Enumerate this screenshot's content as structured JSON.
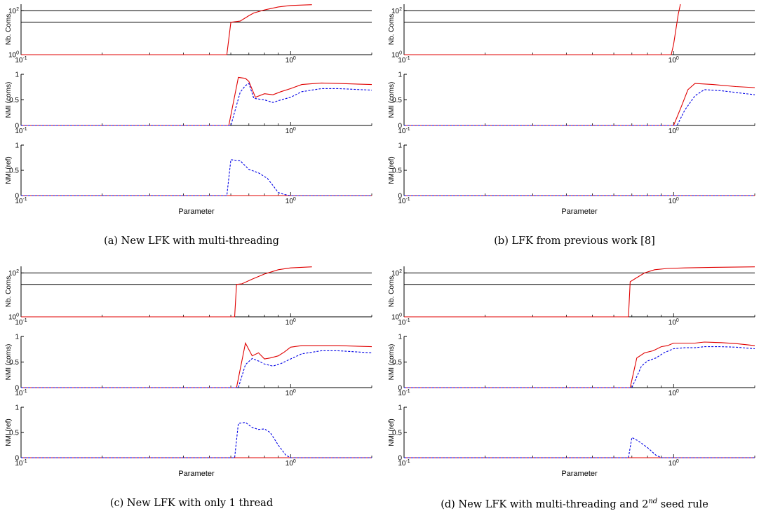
{
  "chart_data": [
    {
      "id": "a",
      "caption": "(a) New LFK with multi-threading",
      "type": "line",
      "xscale": "log",
      "xlim": [
        0.1,
        2
      ],
      "xticks": [
        0.1,
        1
      ],
      "xlabel": "Parameter",
      "subplots": [
        {
          "ylabel": "Nb. Coms",
          "yscale": "log",
          "ylim": [
            1,
            200
          ],
          "yticks": [
            1,
            100
          ],
          "ref_lines": [
            100,
            30
          ],
          "series": [
            {
              "style": "red-solid",
              "x": [
                0.1,
                0.58,
                0.6,
                0.65,
                0.7,
                0.73,
                0.8,
                0.9,
                1.0,
                1.2
              ],
              "y": [
                1,
                1,
                30,
                34,
                60,
                80,
                110,
                150,
                175,
                190
              ]
            }
          ]
        },
        {
          "ylabel": "NMI (coms)",
          "ylim": [
            0,
            1
          ],
          "yticks": [
            0,
            0.5,
            1
          ],
          "series": [
            {
              "style": "red-solid",
              "x": [
                0.1,
                0.59,
                0.64,
                0.68,
                0.7,
                0.74,
                0.8,
                0.86,
                0.92,
                1.0,
                1.1,
                1.3,
                1.5,
                2.0
              ],
              "y": [
                0,
                0,
                0.94,
                0.92,
                0.86,
                0.55,
                0.62,
                0.6,
                0.66,
                0.72,
                0.8,
                0.83,
                0.82,
                0.8
              ]
            },
            {
              "style": "blue-dashed",
              "x": [
                0.1,
                0.6,
                0.65,
                0.68,
                0.7,
                0.73,
                0.8,
                0.86,
                0.92,
                1.0,
                1.1,
                1.3,
                1.5,
                2.0
              ],
              "y": [
                0,
                0,
                0.65,
                0.78,
                0.82,
                0.53,
                0.5,
                0.45,
                0.5,
                0.55,
                0.66,
                0.72,
                0.72,
                0.69
              ]
            }
          ]
        },
        {
          "ylabel": "NMI (ref)",
          "ylim": [
            0,
            1
          ],
          "yticks": [
            0,
            0.5,
            1
          ],
          "series": [
            {
              "style": "red-solid",
              "x": [
                0.1,
                2.0
              ],
              "y": [
                0,
                0
              ]
            },
            {
              "style": "blue-dashed",
              "x": [
                0.1,
                0.58,
                0.6,
                0.65,
                0.7,
                0.76,
                0.82,
                0.86,
                0.9,
                0.95,
                1.0,
                2.0
              ],
              "y": [
                0,
                0,
                0.71,
                0.69,
                0.52,
                0.45,
                0.34,
                0.2,
                0.06,
                0.02,
                0,
                0
              ]
            }
          ]
        }
      ]
    },
    {
      "id": "b",
      "caption": "(b) LFK from previous work [8]",
      "type": "line",
      "xscale": "log",
      "xlim": [
        0.1,
        2
      ],
      "xticks": [
        0.1,
        1
      ],
      "xlabel": "Parameter",
      "subplots": [
        {
          "ylabel": "Nb. Coms",
          "yscale": "log",
          "ylim": [
            1,
            200
          ],
          "yticks": [
            1,
            100
          ],
          "ref_lines": [
            100,
            30
          ],
          "series": [
            {
              "style": "red-solid",
              "x": [
                0.1,
                0.98,
                1.0,
                1.04,
                1.06
              ],
              "y": [
                1,
                1,
                3,
                70,
                200
              ]
            }
          ]
        },
        {
          "ylabel": "NMI (coms)",
          "ylim": [
            0,
            1
          ],
          "yticks": [
            0,
            0.5,
            1
          ],
          "series": [
            {
              "style": "red-solid",
              "x": [
                0.1,
                1.0,
                1.07,
                1.13,
                1.2,
                1.4,
                1.7,
                2.0
              ],
              "y": [
                0,
                0,
                0.38,
                0.7,
                0.82,
                0.8,
                0.76,
                0.74
              ]
            },
            {
              "style": "blue-dashed",
              "x": [
                0.1,
                1.03,
                1.1,
                1.2,
                1.3,
                1.5,
                2.0
              ],
              "y": [
                0,
                0,
                0.3,
                0.58,
                0.7,
                0.68,
                0.6
              ]
            }
          ]
        },
        {
          "ylabel": "NMI (ref)",
          "ylim": [
            0,
            1
          ],
          "yticks": [
            0,
            0.5,
            1
          ],
          "series": [
            {
              "style": "red-solid",
              "x": [
                0.1,
                2.0
              ],
              "y": [
                0,
                0
              ]
            },
            {
              "style": "blue-dashed",
              "x": [
                0.1,
                2.0
              ],
              "y": [
                0,
                0
              ]
            }
          ]
        }
      ]
    },
    {
      "id": "c",
      "caption": "(c) New LFK with only 1 thread",
      "type": "line",
      "xscale": "log",
      "xlim": [
        0.1,
        2
      ],
      "xticks": [
        0.1,
        1
      ],
      "xlabel": "Parameter",
      "subplots": [
        {
          "ylabel": "Nb. Coms",
          "yscale": "log",
          "ylim": [
            1,
            200
          ],
          "yticks": [
            1,
            100
          ],
          "ref_lines": [
            100,
            30
          ],
          "series": [
            {
              "style": "red-solid",
              "x": [
                0.1,
                0.62,
                0.63,
                0.66,
                0.72,
                0.8,
                0.9,
                1.0,
                1.2
              ],
              "y": [
                1,
                1,
                30,
                32,
                52,
                90,
                140,
                170,
                190
              ]
            }
          ]
        },
        {
          "ylabel": "NMI (coms)",
          "ylim": [
            0,
            1
          ],
          "yticks": [
            0,
            0.5,
            1
          ],
          "series": [
            {
              "style": "red-solid",
              "x": [
                0.1,
                0.63,
                0.68,
                0.72,
                0.76,
                0.8,
                0.84,
                0.9,
                0.95,
                1.0,
                1.1,
                1.3,
                1.5,
                2.0
              ],
              "y": [
                0,
                0,
                0.87,
                0.62,
                0.68,
                0.56,
                0.58,
                0.62,
                0.7,
                0.79,
                0.82,
                0.82,
                0.82,
                0.8
              ]
            },
            {
              "style": "blue-dashed",
              "x": [
                0.1,
                0.64,
                0.68,
                0.72,
                0.76,
                0.8,
                0.86,
                0.92,
                1.0,
                1.1,
                1.3,
                1.5,
                2.0
              ],
              "y": [
                0,
                0,
                0.45,
                0.57,
                0.52,
                0.46,
                0.42,
                0.47,
                0.56,
                0.66,
                0.72,
                0.72,
                0.68
              ]
            }
          ]
        },
        {
          "ylabel": "NMI (ref)",
          "ylim": [
            0,
            1
          ],
          "yticks": [
            0,
            0.5,
            1
          ],
          "series": [
            {
              "style": "red-solid",
              "x": [
                0.1,
                2.0
              ],
              "y": [
                0,
                0
              ]
            },
            {
              "style": "blue-dashed",
              "x": [
                0.1,
                0.62,
                0.64,
                0.68,
                0.72,
                0.76,
                0.8,
                0.84,
                0.9,
                0.96,
                1.0,
                2.0
              ],
              "y": [
                0,
                0,
                0.68,
                0.7,
                0.6,
                0.56,
                0.57,
                0.5,
                0.25,
                0.05,
                0,
                0
              ]
            }
          ]
        }
      ]
    },
    {
      "id": "d",
      "caption_prefix": "(d) New LFK with multi-threading and 2",
      "caption_sup": "nd",
      "caption_suffix": " seed rule",
      "type": "line",
      "xscale": "log",
      "xlim": [
        0.1,
        2
      ],
      "xticks": [
        0.1,
        1
      ],
      "xlabel": "Parameter",
      "subplots": [
        {
          "ylabel": "Nb. Coms",
          "yscale": "log",
          "ylim": [
            1,
            200
          ],
          "yticks": [
            1,
            100
          ],
          "ref_lines": [
            100,
            30
          ],
          "series": [
            {
              "style": "red-solid",
              "x": [
                0.1,
                0.68,
                0.69,
                0.72,
                0.78,
                0.85,
                0.95,
                1.1,
                1.4,
                2.0
              ],
              "y": [
                1,
                1,
                40,
                55,
                100,
                140,
                160,
                170,
                180,
                190
              ]
            }
          ]
        },
        {
          "ylabel": "NMI (coms)",
          "ylim": [
            0,
            1
          ],
          "yticks": [
            0,
            0.5,
            1
          ],
          "series": [
            {
              "style": "red-solid",
              "x": [
                0.1,
                0.69,
                0.73,
                0.78,
                0.84,
                0.9,
                0.95,
                1.0,
                1.1,
                1.2,
                1.3,
                1.5,
                1.7,
                2.0
              ],
              "y": [
                0,
                0,
                0.58,
                0.68,
                0.72,
                0.8,
                0.82,
                0.87,
                0.87,
                0.87,
                0.89,
                0.88,
                0.86,
                0.82
              ]
            },
            {
              "style": "blue-dashed",
              "x": [
                0.1,
                0.7,
                0.76,
                0.8,
                0.86,
                0.92,
                1.0,
                1.1,
                1.2,
                1.3,
                1.5,
                1.7,
                2.0
              ],
              "y": [
                0,
                0,
                0.42,
                0.52,
                0.58,
                0.68,
                0.76,
                0.78,
                0.78,
                0.8,
                0.8,
                0.79,
                0.76
              ]
            }
          ]
        },
        {
          "ylabel": "NMI (ref)",
          "ylim": [
            0,
            1
          ],
          "yticks": [
            0,
            0.5,
            1
          ],
          "series": [
            {
              "style": "red-solid",
              "x": [
                0.1,
                2.0
              ],
              "y": [
                0,
                0
              ]
            },
            {
              "style": "blue-dashed",
              "x": [
                0.1,
                0.68,
                0.7,
                0.74,
                0.8,
                0.86,
                0.9,
                2.0
              ],
              "y": [
                0,
                0,
                0.4,
                0.33,
                0.2,
                0.05,
                0,
                0
              ]
            }
          ]
        }
      ]
    }
  ]
}
